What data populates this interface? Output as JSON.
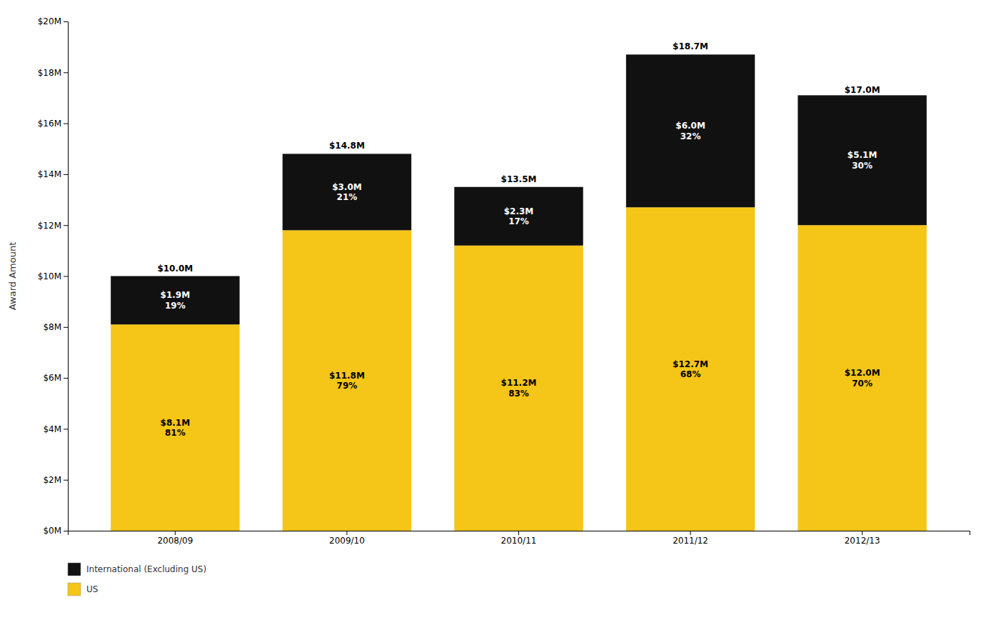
{
  "chart_data": {
    "type": "bar",
    "stacked": true,
    "categories": [
      "2008/09",
      "2009/10",
      "2010/11",
      "2011/12",
      "2012/13"
    ],
    "series": [
      {
        "name": "US",
        "color": "#F5C518",
        "values": [
          8.1,
          11.8,
          11.2,
          12.7,
          12.0
        ],
        "value_labels": [
          "$8.1M\n81%",
          "$11.8M\n79%",
          "$11.2M\n83%",
          "$12.7M\n68%",
          "$12.0M\n70%"
        ]
      },
      {
        "name": "International (Excluding US)",
        "color": "#111111",
        "values": [
          1.9,
          3.0,
          2.3,
          6.0,
          5.1
        ],
        "value_labels": [
          "$1.9M\n19%",
          "$3.0M\n21%",
          "$2.3M\n17%",
          "$6.0M\n32%",
          "$5.1M\n30%"
        ]
      }
    ],
    "totals": [
      10.0,
      14.8,
      13.5,
      18.7,
      17.0
    ],
    "total_labels": [
      "$10.0M",
      "$14.8M",
      "$13.5M",
      "$18.7M",
      "$17.0M"
    ],
    "data_labels": true,
    "ylabel": "Award Amount",
    "ylim": [
      0,
      20
    ],
    "yticks": [
      {
        "value": 0,
        "label": "$0M"
      },
      {
        "value": 2,
        "label": "$2M"
      },
      {
        "value": 4,
        "label": "$4M"
      },
      {
        "value": 6,
        "label": "$6M"
      },
      {
        "value": 8,
        "label": "$8M"
      },
      {
        "value": 10,
        "label": "$10M"
      },
      {
        "value": 12,
        "label": "$12M"
      },
      {
        "value": 14,
        "label": "$14M"
      },
      {
        "value": 16,
        "label": "$16M"
      },
      {
        "value": 18,
        "label": "$18M"
      },
      {
        "value": 20,
        "label": "$20M"
      }
    ],
    "grid": false,
    "legend": "bottom"
  }
}
